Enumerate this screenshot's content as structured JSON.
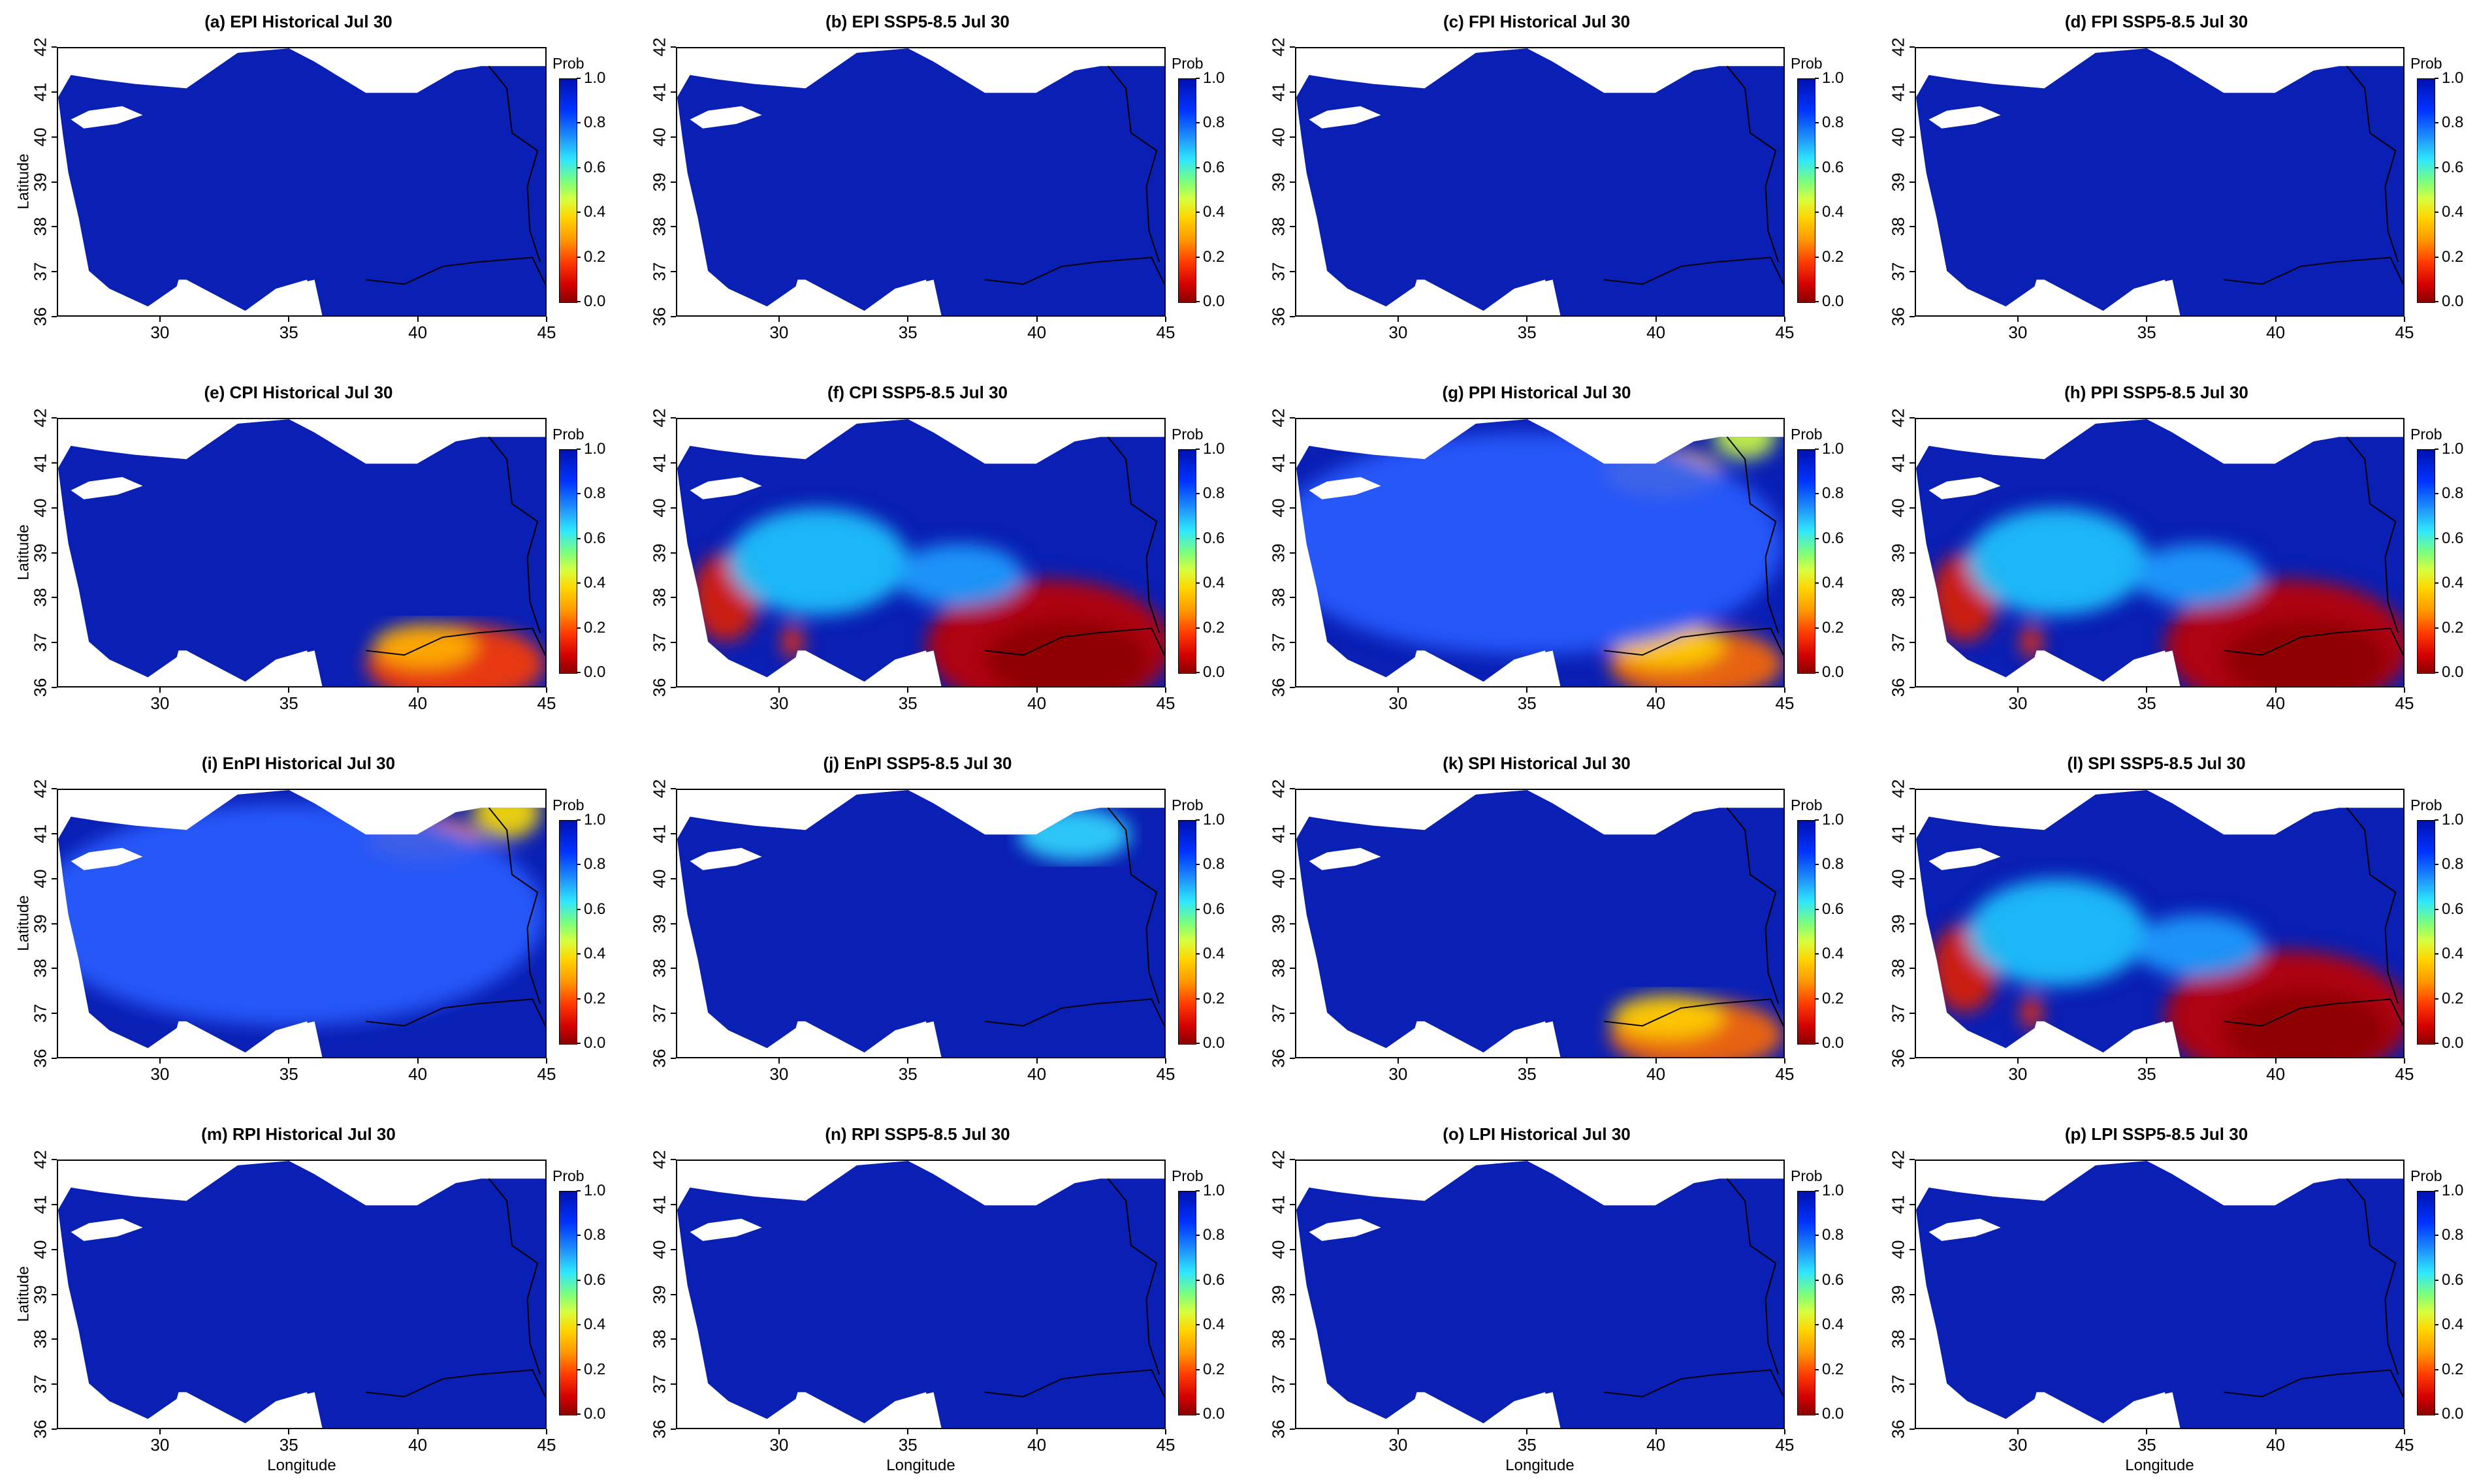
{
  "figure": {
    "colorbar_label": "Prob",
    "colorbar_ticks": [
      "0.0",
      "0.2",
      "0.4",
      "0.6",
      "0.8",
      "1.0"
    ],
    "x_ticks": [
      "30",
      "35",
      "40",
      "45"
    ],
    "y_ticks": [
      "36",
      "37",
      "38",
      "39",
      "40",
      "41",
      "42"
    ],
    "x_axis_label": "Longitude",
    "y_axis_label": "Latitude"
  },
  "panels": [
    {
      "title": "(a) EPI Historical Jul 30",
      "hotspots": []
    },
    {
      "title": "(b) EPI SSP5-8.5 Jul 30",
      "hotspots": []
    },
    {
      "title": "(c) FPI Historical Jul 30",
      "hotspots": []
    },
    {
      "title": "(d) FPI SSP5-8.5 Jul 30",
      "hotspots": []
    },
    {
      "title": "(e) CPI Historical Jul 30",
      "hotspots": [
        "southeast-red"
      ]
    },
    {
      "title": "(f) CPI SSP5-8.5 Jul 30",
      "hotspots": [
        "southeast-darkred",
        "southwest-red",
        "central-cyan"
      ]
    },
    {
      "title": "(g) PPI Historical Jul 30",
      "hotspots": [
        "northeast-yellow",
        "southeast-orange",
        "broad-lightblue"
      ]
    },
    {
      "title": "(h) PPI SSP5-8.5 Jul 30",
      "hotspots": [
        "southeast-darkred",
        "southwest-red",
        "central-cyan"
      ]
    },
    {
      "title": "(i) EnPI Historical Jul 30",
      "hotspots": [
        "northeast-orange",
        "broad-lightblue"
      ]
    },
    {
      "title": "(j) EnPI SSP5-8.5 Jul 30",
      "hotspots": [
        "northeast-cyan"
      ]
    },
    {
      "title": "(k) SPI Historical Jul 30",
      "hotspots": [
        "southeast-orange"
      ]
    },
    {
      "title": "(l) SPI SSP5-8.5 Jul 30",
      "hotspots": [
        "southeast-darkred",
        "southwest-red",
        "central-cyan"
      ]
    },
    {
      "title": "(m) RPI Historical Jul 30",
      "hotspots": []
    },
    {
      "title": "(n) RPI SSP5-8.5 Jul 30",
      "hotspots": []
    },
    {
      "title": "(o) LPI Historical Jul 30",
      "hotspots": []
    },
    {
      "title": "(p) LPI SSP5-8.5 Jul 30",
      "hotspots": []
    }
  ]
}
